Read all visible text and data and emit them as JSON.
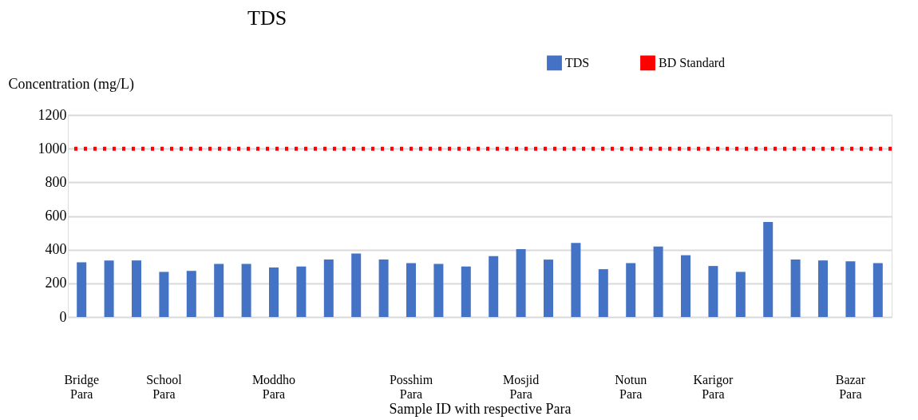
{
  "chart_data": {
    "type": "bar",
    "title": "TDS",
    "ylabel": "Concentration (mg/L)",
    "xlabel": "Sample ID with respective Para",
    "categories": [
      "Bridge Para",
      null,
      null,
      "School Para",
      null,
      null,
      null,
      "Moddho Para",
      null,
      null,
      null,
      null,
      "Posshim Para",
      null,
      null,
      null,
      "Mosjid Para",
      null,
      null,
      null,
      "Notun Para",
      null,
      null,
      "Karigor Para",
      null,
      null,
      null,
      null,
      "Bazar Para",
      null
    ],
    "series": [
      {
        "name": "TDS",
        "color": "#4472c4",
        "values": [
          325,
          336,
          336,
          268,
          274,
          315,
          315,
          294,
          300,
          341,
          377,
          341,
          320,
          315,
          300,
          362,
          403,
          341,
          440,
          284,
          320,
          419,
          367,
          303,
          268,
          564,
          341,
          336,
          331,
          320
        ]
      }
    ],
    "ref_lines": [
      {
        "axis": "y",
        "value": 1000,
        "label": "BD Standard",
        "color": "#ff0000",
        "line_style": "dotted"
      }
    ],
    "ylim": [
      0,
      1200
    ],
    "yticks": [
      0,
      200,
      400,
      600,
      800,
      1000,
      1200
    ],
    "grid": "y",
    "legend": "top right"
  }
}
